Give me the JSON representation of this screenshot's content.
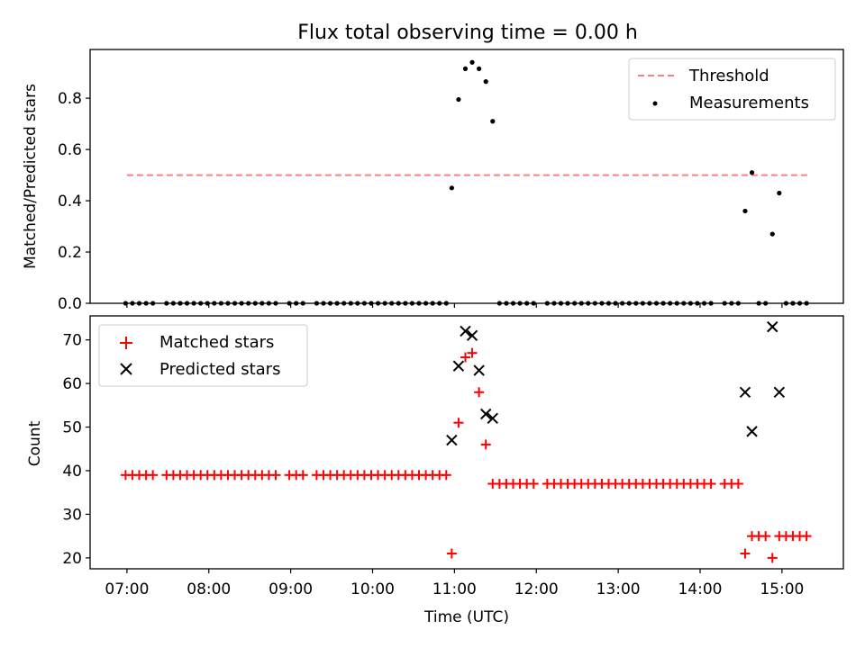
{
  "title": "Flux total observing time = 0.00 h",
  "colors": {
    "threshold": "#ff7f7f",
    "measurement": "#000000",
    "matched": "#ff0000",
    "predicted": "#000000"
  },
  "chart_data": [
    {
      "type": "scatter",
      "ylabel": "Matched/Predicted stars",
      "ylim": [
        0,
        0.99
      ],
      "yticks": [
        0.0,
        0.2,
        0.4,
        0.6,
        0.8
      ],
      "ytick_labels": [
        "0.0",
        "0.2",
        "0.4",
        "0.6",
        "0.8"
      ],
      "legend": {
        "position": "upper right",
        "entries": [
          "Threshold",
          "Measurements"
        ]
      },
      "threshold": {
        "name": "Threshold",
        "y": 0.5,
        "x_start": "07:00",
        "x_end": "15:20"
      },
      "measurements": {
        "name": "Measurements",
        "x": [
          "06:59",
          "07:04",
          "07:09",
          "07:14",
          "07:19",
          "07:29",
          "07:34",
          "07:39",
          "07:44",
          "07:49",
          "07:54",
          "07:59",
          "08:04",
          "08:09",
          "08:14",
          "08:19",
          "08:24",
          "08:29",
          "08:34",
          "08:39",
          "08:44",
          "08:49",
          "08:59",
          "09:04",
          "09:09",
          "09:19",
          "09:24",
          "09:29",
          "09:34",
          "09:39",
          "09:44",
          "09:49",
          "09:54",
          "09:59",
          "10:04",
          "10:09",
          "10:14",
          "10:19",
          "10:24",
          "10:29",
          "10:34",
          "10:39",
          "10:44",
          "10:49",
          "10:54",
          "10:58",
          "11:03",
          "11:08",
          "11:13",
          "11:18",
          "11:23",
          "11:28",
          "11:33",
          "11:38",
          "11:43",
          "11:48",
          "11:53",
          "11:58",
          "12:08",
          "12:13",
          "12:18",
          "12:23",
          "12:28",
          "12:33",
          "12:38",
          "12:43",
          "12:48",
          "12:53",
          "12:58",
          "13:03",
          "13:08",
          "13:13",
          "13:18",
          "13:23",
          "13:28",
          "13:33",
          "13:38",
          "13:43",
          "13:48",
          "13:53",
          "13:58",
          "14:03",
          "14:08",
          "14:18",
          "14:23",
          "14:28",
          "14:33",
          "14:38",
          "14:43",
          "14:48",
          "14:53",
          "14:58",
          "15:03",
          "15:08",
          "15:13",
          "15:18"
        ],
        "y": [
          0,
          0,
          0,
          0,
          0,
          0,
          0,
          0,
          0,
          0,
          0,
          0,
          0,
          0,
          0,
          0,
          0,
          0,
          0,
          0,
          0,
          0,
          0,
          0,
          0,
          0,
          0,
          0,
          0,
          0,
          0,
          0,
          0,
          0,
          0,
          0,
          0,
          0,
          0,
          0,
          0,
          0,
          0,
          0,
          0,
          0.45,
          0.795,
          0.915,
          0.94,
          0.915,
          0.865,
          0.71,
          0,
          0,
          0,
          0,
          0,
          0,
          0,
          0,
          0,
          0,
          0,
          0,
          0,
          0,
          0,
          0,
          0,
          0,
          0,
          0,
          0,
          0,
          0,
          0,
          0,
          0,
          0,
          0,
          0,
          0,
          0,
          0,
          0,
          0,
          0.36,
          0.51,
          0,
          0,
          0.27,
          0.43,
          0,
          0,
          0,
          0
        ]
      }
    },
    {
      "type": "scatter",
      "xlabel": "Time (UTC)",
      "ylabel": "Count",
      "xlim": [
        "06:33",
        "15:45"
      ],
      "xticks": [
        "07:00",
        "08:00",
        "09:00",
        "10:00",
        "11:00",
        "12:00",
        "13:00",
        "14:00",
        "15:00"
      ],
      "ylim": [
        17.5,
        75.5
      ],
      "yticks": [
        20,
        30,
        40,
        50,
        60,
        70
      ],
      "ytick_labels": [
        "20",
        "30",
        "40",
        "50",
        "60",
        "70"
      ],
      "legend": {
        "position": "upper left",
        "entries": [
          "Matched stars",
          "Predicted stars"
        ]
      },
      "series": [
        {
          "name": "Matched stars",
          "marker": "+",
          "x": [
            "06:59",
            "07:04",
            "07:09",
            "07:14",
            "07:19",
            "07:29",
            "07:34",
            "07:39",
            "07:44",
            "07:49",
            "07:54",
            "07:59",
            "08:04",
            "08:09",
            "08:14",
            "08:19",
            "08:24",
            "08:29",
            "08:34",
            "08:39",
            "08:44",
            "08:49",
            "08:59",
            "09:04",
            "09:09",
            "09:19",
            "09:24",
            "09:29",
            "09:34",
            "09:39",
            "09:44",
            "09:49",
            "09:54",
            "09:59",
            "10:04",
            "10:09",
            "10:14",
            "10:19",
            "10:24",
            "10:29",
            "10:34",
            "10:39",
            "10:44",
            "10:49",
            "10:54",
            "10:58",
            "11:03",
            "11:08",
            "11:13",
            "11:18",
            "11:23",
            "11:28",
            "11:33",
            "11:38",
            "11:43",
            "11:48",
            "11:53",
            "11:58",
            "12:08",
            "12:13",
            "12:18",
            "12:23",
            "12:28",
            "12:33",
            "12:38",
            "12:43",
            "12:48",
            "12:53",
            "12:58",
            "13:03",
            "13:08",
            "13:13",
            "13:18",
            "13:23",
            "13:28",
            "13:33",
            "13:38",
            "13:43",
            "13:48",
            "13:53",
            "13:58",
            "14:03",
            "14:08",
            "14:18",
            "14:23",
            "14:28",
            "14:33",
            "14:38",
            "14:43",
            "14:48",
            "14:53",
            "14:58",
            "15:03",
            "15:08",
            "15:13",
            "15:18"
          ],
          "y": [
            39,
            39,
            39,
            39,
            39,
            39,
            39,
            39,
            39,
            39,
            39,
            39,
            39,
            39,
            39,
            39,
            39,
            39,
            39,
            39,
            39,
            39,
            39,
            39,
            39,
            39,
            39,
            39,
            39,
            39,
            39,
            39,
            39,
            39,
            39,
            39,
            39,
            39,
            39,
            39,
            39,
            39,
            39,
            39,
            39,
            21,
            51,
            66,
            67,
            58,
            46,
            37,
            37,
            37,
            37,
            37,
            37,
            37,
            37,
            37,
            37,
            37,
            37,
            37,
            37,
            37,
            37,
            37,
            37,
            37,
            37,
            37,
            37,
            37,
            37,
            37,
            37,
            37,
            37,
            37,
            37,
            37,
            37,
            37,
            37,
            37,
            21,
            25,
            25,
            25,
            20,
            25,
            25,
            25,
            25,
            25
          ]
        },
        {
          "name": "Predicted stars",
          "marker": "x",
          "x": [
            "10:58",
            "11:03",
            "11:08",
            "11:13",
            "11:18",
            "11:23",
            "11:28",
            "14:33",
            "14:38",
            "14:53",
            "14:58"
          ],
          "y": [
            47,
            64,
            72,
            71,
            63,
            53,
            52,
            58,
            49,
            73,
            58
          ]
        }
      ]
    }
  ]
}
